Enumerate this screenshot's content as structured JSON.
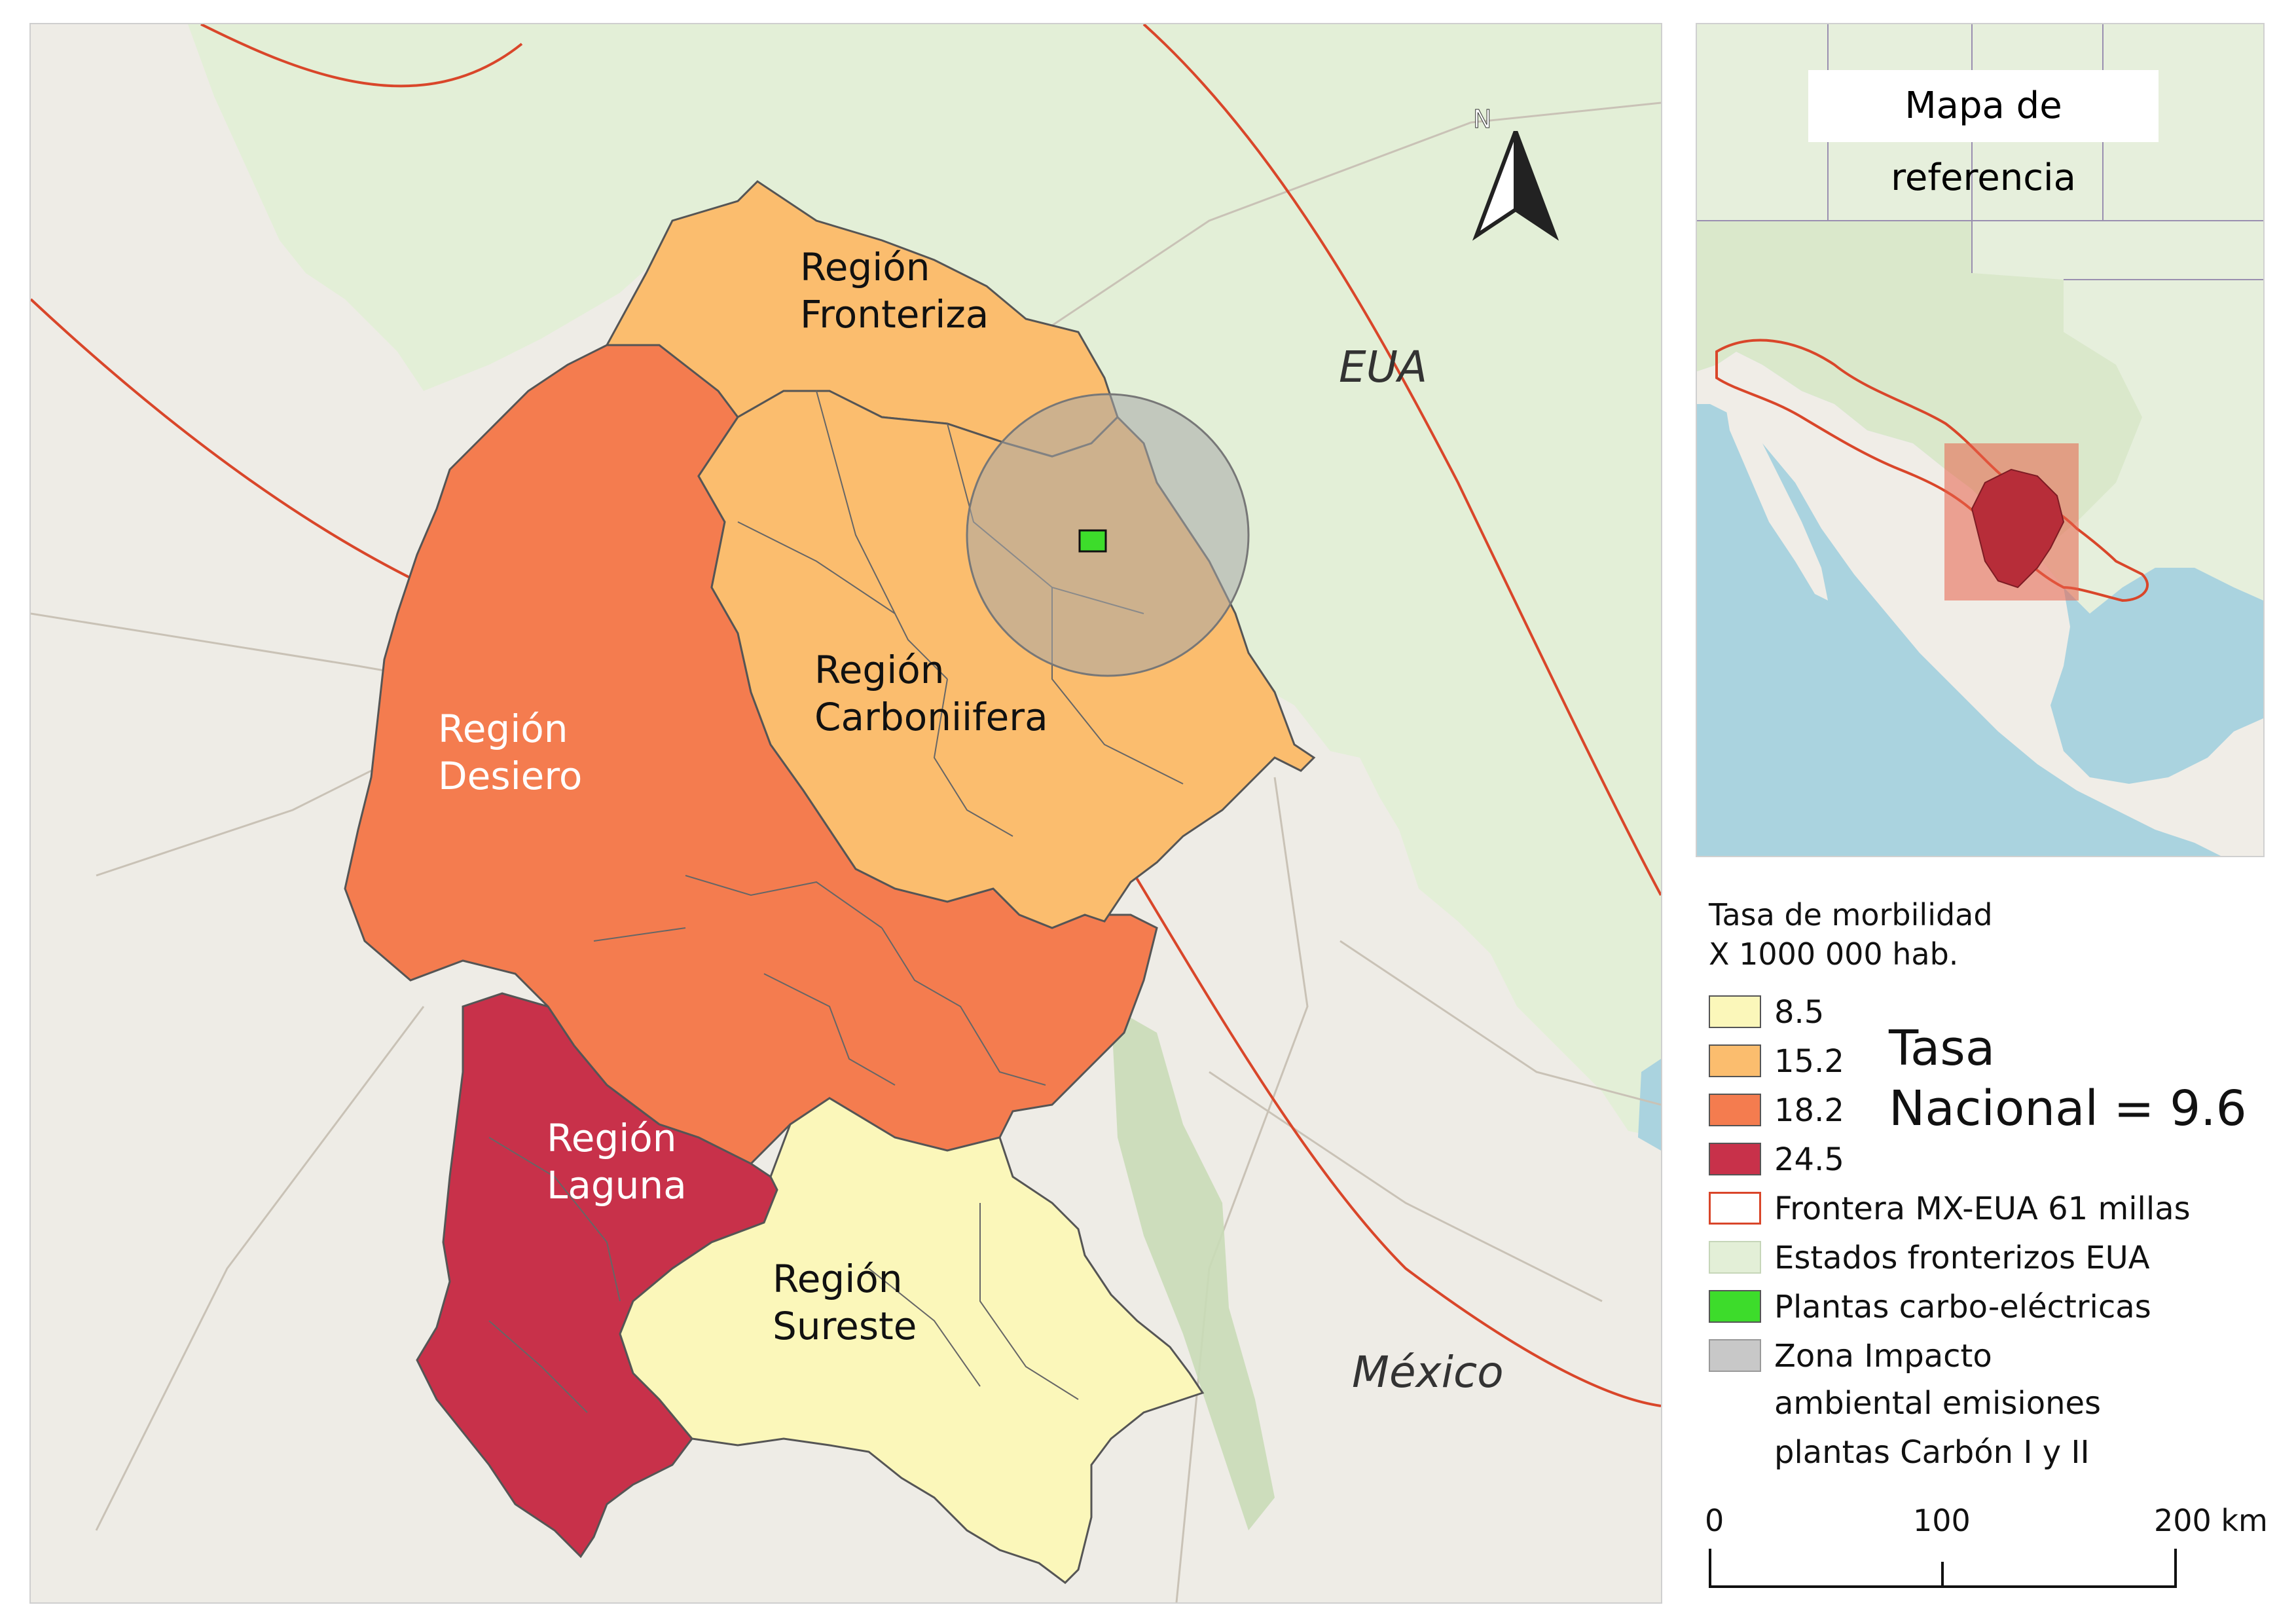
{
  "main_map": {
    "country_labels": {
      "usa": "EUA",
      "mexico": "México"
    },
    "regions": [
      {
        "id": "fronteriza",
        "line1": "Región",
        "line2": "Fronteriza",
        "rate": "15.2",
        "color": "#fbbd6e"
      },
      {
        "id": "carbonifera",
        "line1": "Región",
        "line2": "Carboniifera",
        "rate": "15.2",
        "color": "#fbbd6e"
      },
      {
        "id": "desierto",
        "line1": "Región",
        "line2": "Desiero",
        "rate": "18.2",
        "color": "#f47c4f"
      },
      {
        "id": "laguna",
        "line1": "Región",
        "line2": "Laguna",
        "rate": "24.5",
        "color": "#c8314a"
      },
      {
        "id": "sureste",
        "line1": "Región",
        "line2": "Sureste",
        "rate": "8.5",
        "color": "#fbf7ba"
      }
    ],
    "north_label": "N"
  },
  "reference_map": {
    "title": "Mapa de referencia"
  },
  "legend": {
    "title_line1": "Tasa de morbilidad",
    "title_line2": "X 1000 000 hab.",
    "classes": [
      {
        "label": "8.5",
        "color": "#fbf7ba"
      },
      {
        "label": "15.2",
        "color": "#fbbd6e"
      },
      {
        "label": "18.2",
        "color": "#f47c4f"
      },
      {
        "label": "24.5",
        "color": "#c8314a"
      }
    ],
    "border_label": "Frontera MX-EUA 61 millas",
    "border_color": "#d9462a",
    "us_states_label": "Estados fronterizos EUA",
    "us_states_color": "#e3efd7",
    "plants_label": "Plantas carbo-eléctricas",
    "plants_color": "#3ddc2b",
    "impact_line1": "Zona Impacto",
    "impact_line2": "ambiental emisiones",
    "impact_line3": "plantas Carbón I y II",
    "impact_color": "#c8c8c8",
    "national_rate_line1": "Tasa",
    "national_rate_line2": "Nacional = 9.6"
  },
  "scale_bar": {
    "labels": [
      "0",
      "100",
      "200 km"
    ]
  }
}
